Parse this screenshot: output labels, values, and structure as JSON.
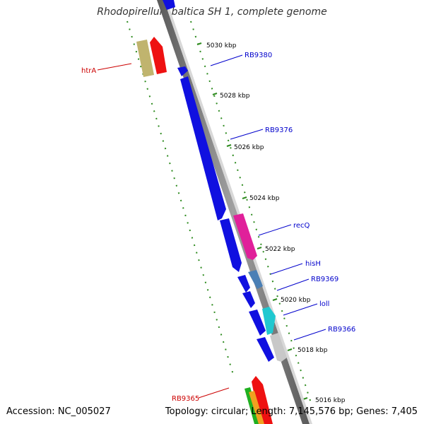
{
  "title": "Rhodopirellula baltica SH 1, complete genome",
  "accession": "Accession: NC_005027",
  "summary": "Topology: circular; Length: 7,145,576 bp; Genes: 7,405",
  "colors": {
    "backbone": "#7f7f7f",
    "tick_green": "#2e8b1f",
    "forward_label": "#0000cc",
    "reverse_label": "#cc0000"
  },
  "kbp_labels": [
    "5030 kbp",
    "5028 kbp",
    "5026 kbp",
    "5024 kbp",
    "5022 kbp",
    "5020 kbp",
    "5018 kbp",
    "5016 kbp"
  ],
  "gene_labels": {
    "RB9380": "RB9380",
    "RB9376": "RB9376",
    "recQ": "recQ",
    "hisH": "hisH",
    "RB9369": "RB9369",
    "loll": "loll",
    "RB9366": "RB9366",
    "htrA": "htrA",
    "RB9365": "RB9365"
  }
}
